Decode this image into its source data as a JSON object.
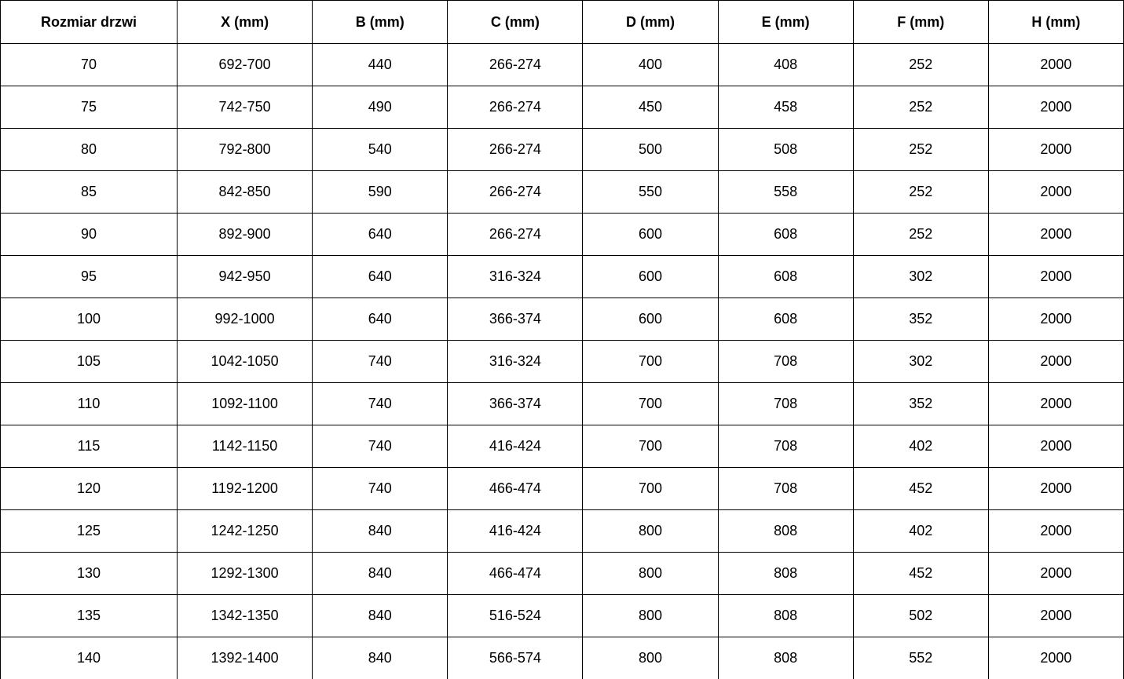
{
  "table": {
    "name": "door-size-dimensions-table",
    "columns": [
      "Rozmiar drzwi",
      "X (mm)",
      "B (mm)",
      "C (mm)",
      "D (mm)",
      "E (mm)",
      "F (mm)",
      "H (mm)"
    ],
    "rows": [
      [
        "70",
        "692-700",
        "440",
        "266-274",
        "400",
        "408",
        "252",
        "2000"
      ],
      [
        "75",
        "742-750",
        "490",
        "266-274",
        "450",
        "458",
        "252",
        "2000"
      ],
      [
        "80",
        "792-800",
        "540",
        "266-274",
        "500",
        "508",
        "252",
        "2000"
      ],
      [
        "85",
        "842-850",
        "590",
        "266-274",
        "550",
        "558",
        "252",
        "2000"
      ],
      [
        "90",
        "892-900",
        "640",
        "266-274",
        "600",
        "608",
        "252",
        "2000"
      ],
      [
        "95",
        "942-950",
        "640",
        "316-324",
        "600",
        "608",
        "302",
        "2000"
      ],
      [
        "100",
        "992-1000",
        "640",
        "366-374",
        "600",
        "608",
        "352",
        "2000"
      ],
      [
        "105",
        "1042-1050",
        "740",
        "316-324",
        "700",
        "708",
        "302",
        "2000"
      ],
      [
        "110",
        "1092-1100",
        "740",
        "366-374",
        "700",
        "708",
        "352",
        "2000"
      ],
      [
        "115",
        "1142-1150",
        "740",
        "416-424",
        "700",
        "708",
        "402",
        "2000"
      ],
      [
        "120",
        "1192-1200",
        "740",
        "466-474",
        "700",
        "708",
        "452",
        "2000"
      ],
      [
        "125",
        "1242-1250",
        "840",
        "416-424",
        "800",
        "808",
        "402",
        "2000"
      ],
      [
        "130",
        "1292-1300",
        "840",
        "466-474",
        "800",
        "808",
        "452",
        "2000"
      ],
      [
        "135",
        "1342-1350",
        "840",
        "516-524",
        "800",
        "808",
        "502",
        "2000"
      ],
      [
        "140",
        "1392-1400",
        "840",
        "566-574",
        "800",
        "808",
        "552",
        "2000"
      ]
    ],
    "colors": {
      "border": "#000000",
      "text": "#000000",
      "background": "#ffffff"
    }
  }
}
